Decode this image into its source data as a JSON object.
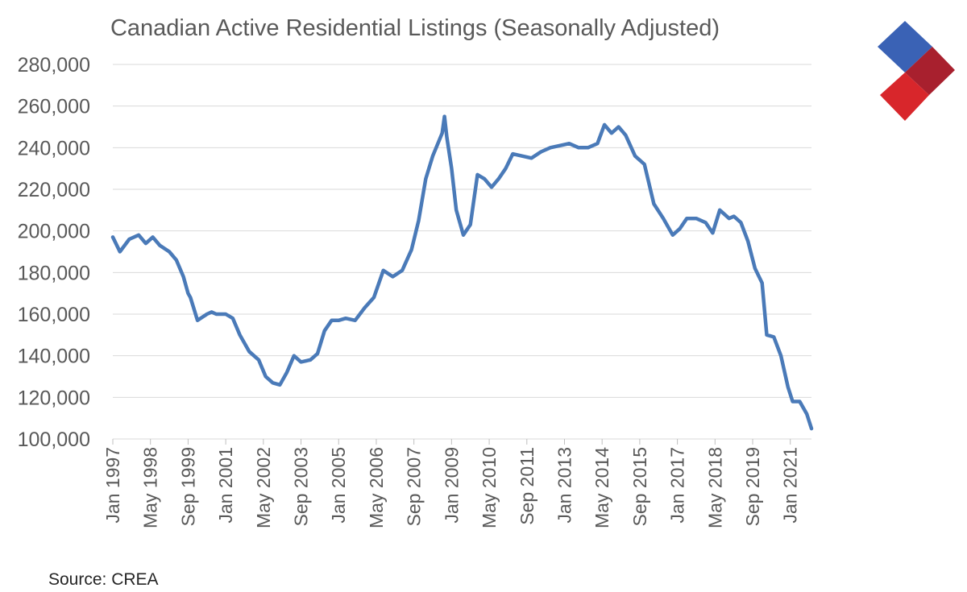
{
  "chart_data": {
    "type": "line",
    "title": "Canadian Active Residential Listings (Seasonally Adjusted)",
    "source": "Source: CREA",
    "xlabel": "",
    "ylabel": "",
    "ylim": [
      100000,
      280000
    ],
    "y_ticks": [
      100000,
      120000,
      140000,
      160000,
      180000,
      200000,
      220000,
      240000,
      260000,
      280000
    ],
    "y_tick_labels": [
      "100,000",
      "120,000",
      "140,000",
      "160,000",
      "180,000",
      "200,000",
      "220,000",
      "240,000",
      "260,000",
      "280,000"
    ],
    "x_tick_labels": [
      "Jan 1997",
      "May 1998",
      "Sep 1999",
      "Jan 2001",
      "May 2002",
      "Sep 2003",
      "Jan 2005",
      "May 2006",
      "Sep 2007",
      "Jan 2009",
      "May 2010",
      "Sep 2011",
      "Jan 2013",
      "May 2014",
      "Sep 2015",
      "Jan 2017",
      "May 2018",
      "Sep 2019",
      "Jan 2021"
    ],
    "x_range": [
      "Jan 1997",
      "Oct 2021"
    ],
    "grid": "horizontal",
    "legend": "none",
    "line_color": "#4a7ab8",
    "series": [
      {
        "x": [
          "1997-01",
          "1997-04",
          "1997-08",
          "1997-12",
          "1998-03",
          "1998-06",
          "1998-09",
          "1999-01",
          "1999-04",
          "1999-07",
          "1999-09",
          "1999-10",
          "2000-01",
          "2000-05",
          "2000-07",
          "2000-09",
          "2001-01",
          "2001-04",
          "2001-07",
          "2001-11",
          "2002-03",
          "2002-06",
          "2002-09",
          "2002-12",
          "2003-03",
          "2003-06",
          "2003-09",
          "2004-01",
          "2004-04",
          "2004-07",
          "2004-10",
          "2005-01",
          "2005-04",
          "2005-08",
          "2005-12",
          "2006-04",
          "2006-08",
          "2006-12",
          "2007-04",
          "2007-08",
          "2007-11",
          "2008-02",
          "2008-05",
          "2008-09",
          "2008-10",
          "2008-11",
          "2009-01",
          "2009-03",
          "2009-06",
          "2009-09",
          "2009-12",
          "2010-03",
          "2010-06",
          "2010-09",
          "2010-12",
          "2011-03",
          "2011-07",
          "2011-11",
          "2012-03",
          "2012-07",
          "2012-11",
          "2013-03",
          "2013-07",
          "2013-11",
          "2014-03",
          "2014-06",
          "2014-09",
          "2014-12",
          "2015-03",
          "2015-07",
          "2015-11",
          "2016-03",
          "2016-07",
          "2016-11",
          "2017-02",
          "2017-05",
          "2017-09",
          "2018-01",
          "2018-04",
          "2018-07",
          "2018-11",
          "2019-01",
          "2019-04",
          "2019-07",
          "2019-10",
          "2020-01",
          "2020-03",
          "2020-06",
          "2020-09",
          "2020-12",
          "2021-02",
          "2021-05",
          "2021-08",
          "2021-10"
        ],
        "values": [
          197000,
          190000,
          196000,
          198000,
          194000,
          197000,
          193000,
          190000,
          186000,
          178000,
          170000,
          168000,
          157000,
          160000,
          161000,
          160000,
          160000,
          158000,
          150000,
          142000,
          138000,
          130000,
          127000,
          126000,
          132000,
          140000,
          137000,
          138000,
          141000,
          152000,
          157000,
          157000,
          158000,
          157000,
          163000,
          168000,
          181000,
          178000,
          181000,
          191000,
          205000,
          225000,
          236000,
          247000,
          255000,
          245000,
          230000,
          210000,
          198000,
          203000,
          227000,
          225000,
          221000,
          225000,
          230000,
          237000,
          236000,
          235000,
          238000,
          240000,
          241000,
          242000,
          240000,
          240000,
          242000,
          251000,
          247000,
          250000,
          246000,
          236000,
          232000,
          213000,
          206000,
          198000,
          201000,
          206000,
          206000,
          204000,
          199000,
          210000,
          206000,
          207000,
          204000,
          195000,
          182000,
          175000,
          150000,
          149000,
          140000,
          125000,
          118000,
          118000,
          112000,
          105000
        ]
      }
    ]
  },
  "logo": {
    "colors": [
      "#3a62b5",
      "#a8202e",
      "#d8262b"
    ]
  }
}
